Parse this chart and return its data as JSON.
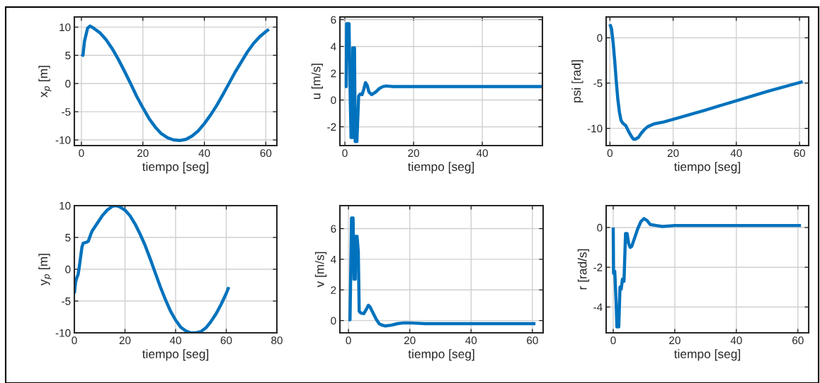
{
  "chart_data": [
    {
      "type": "line",
      "xlabel": "tiempo [seg]",
      "ylabel": "x$_{p}$ [m]",
      "xlim": [
        -2.3,
        63.6
      ],
      "ylim": [
        -11,
        11.8
      ],
      "xticks": [
        0,
        20,
        40,
        60
      ],
      "yticks": [
        -10,
        -5,
        0,
        5,
        10
      ],
      "grid": true,
      "x": [
        0,
        0.5,
        1,
        2,
        2.8,
        4,
        6,
        8,
        10,
        12,
        14,
        16,
        18,
        20,
        22,
        24,
        26,
        28,
        30,
        32,
        34,
        36,
        38,
        40,
        42,
        44,
        46,
        48,
        50,
        52,
        54,
        56,
        58,
        60,
        61
      ],
      "series": [
        {
          "color": "#0072bd",
          "values": [
            5.2,
            5.0,
            7.5,
            9.8,
            10.2,
            9.8,
            9.0,
            7.8,
            6.2,
            4.3,
            2.2,
            0,
            -2.3,
            -4.3,
            -6.2,
            -7.7,
            -8.9,
            -9.6,
            -10,
            -10.1,
            -9.9,
            -9.3,
            -8.4,
            -7.1,
            -5.6,
            -3.9,
            -2.0,
            0,
            2.0,
            3.8,
            5.6,
            7.1,
            8.3,
            9.2,
            9.6
          ]
        }
      ]
    },
    {
      "type": "line",
      "xlabel": "tiempo [seg]",
      "ylabel": "u [m/s]",
      "xlim": [
        -1.45,
        57.5
      ],
      "ylim": [
        -3.4,
        6.2
      ],
      "xticks": [
        0,
        20,
        40
      ],
      "yticks": [
        -2,
        0,
        2,
        4,
        6
      ],
      "grid": true,
      "x": [
        0,
        0.4,
        0.5,
        1.2,
        1.5,
        1.8,
        2.2,
        2.3,
        2.8,
        3,
        3.5,
        4,
        4.5,
        5,
        5.5,
        6,
        6.5,
        7,
        7.8,
        9,
        10,
        11,
        12,
        14,
        20,
        57.5
      ],
      "series": [
        {
          "color": "#0072bd",
          "values": [
            1,
            1,
            5.7,
            5.7,
            1,
            -2.8,
            -2.8,
            3.9,
            3.9,
            -3.1,
            -3.1,
            0.3,
            0.45,
            0.4,
            0.8,
            1.3,
            1.1,
            0.6,
            0.4,
            0.6,
            0.85,
            1.0,
            1.05,
            1.0,
            1.0,
            1.0
          ]
        }
      ]
    },
    {
      "type": "line",
      "xlabel": "tiempo [seg]",
      "ylabel": "psi [rad]",
      "xlim": [
        -1.2,
        62.9
      ],
      "ylim": [
        -11.9,
        2.3
      ],
      "xticks": [
        0,
        20,
        40,
        60
      ],
      "yticks": [
        -10,
        -5,
        0
      ],
      "grid": true,
      "x": [
        0,
        0.5,
        1,
        1.5,
        2,
        2.5,
        3,
        3.5,
        4,
        5,
        6,
        7,
        7.5,
        8,
        9,
        10,
        11,
        12,
        14,
        17,
        20,
        30,
        40,
        50,
        61
      ],
      "series": [
        {
          "color": "#0072bd",
          "values": [
            1.5,
            1.0,
            -0.5,
            -2.5,
            -4.8,
            -6.8,
            -8.2,
            -9.1,
            -9.4,
            -9.7,
            -10.4,
            -11.0,
            -11.2,
            -11.2,
            -11.0,
            -10.5,
            -10.1,
            -9.8,
            -9.5,
            -9.3,
            -9.0,
            -8.0,
            -6.95,
            -5.9,
            -4.85
          ]
        }
      ]
    },
    {
      "type": "line",
      "xlabel": "tiempo [seg]",
      "ylabel": "y$_{p}$ [m]",
      "xlim": [
        0,
        80
      ],
      "ylim": [
        -10,
        10
      ],
      "xticks": [
        0,
        20,
        40,
        60,
        80
      ],
      "yticks": [
        -10,
        -5,
        0,
        5,
        10
      ],
      "grid": true,
      "x": [
        0,
        0.5,
        1,
        1.5,
        2,
        3,
        3.5,
        4.5,
        5.5,
        6.5,
        7,
        9,
        11,
        13,
        15,
        16.5,
        18,
        20,
        22,
        24,
        26,
        28,
        30,
        32,
        34,
        36,
        38,
        40,
        42,
        44,
        46,
        48,
        50,
        52,
        54,
        56,
        58,
        60,
        61
      ],
      "series": [
        {
          "color": "#0072bd",
          "values": [
            -3.8,
            -2,
            -1.3,
            -0.8,
            0.5,
            3.5,
            4.1,
            4.2,
            4.4,
            5.5,
            6,
            7.2,
            8.4,
            9.3,
            9.9,
            10,
            9.8,
            9.3,
            8.4,
            7.1,
            5.5,
            3.7,
            1.6,
            -0.6,
            -2.8,
            -4.8,
            -6.6,
            -8.0,
            -9.1,
            -9.7,
            -10,
            -10,
            -9.8,
            -9.2,
            -8.2,
            -7,
            -5.5,
            -3.8,
            -2.8
          ]
        }
      ]
    },
    {
      "type": "line",
      "xlabel": "tiempo [seg]",
      "ylabel": "v [m/s]",
      "xlim": [
        -2.8,
        63.5
      ],
      "ylim": [
        -0.8,
        7.5
      ],
      "xticks": [
        0,
        20,
        40,
        60
      ],
      "yticks": [
        0,
        2,
        4,
        6
      ],
      "grid": true,
      "x": [
        0,
        0.5,
        1,
        1.5,
        1.8,
        2.2,
        2.4,
        2.8,
        3.2,
        3.5,
        4,
        5,
        6,
        6.5,
        7,
        8,
        9,
        10,
        11,
        12,
        14,
        16,
        18,
        20,
        25,
        61
      ],
      "series": [
        {
          "color": "#0072bd",
          "values": [
            0.05,
            0.05,
            6.7,
            6.7,
            2.7,
            2.7,
            5.5,
            5.5,
            4.5,
            0.6,
            0.5,
            0.45,
            0.8,
            1.0,
            0.9,
            0.5,
            0.1,
            -0.2,
            -0.3,
            -0.35,
            -0.3,
            -0.2,
            -0.15,
            -0.15,
            -0.2,
            -0.2
          ]
        }
      ]
    },
    {
      "type": "line",
      "xlabel": "tiempo [seg]",
      "ylabel": "r [rad/s]",
      "xlim": [
        -2.3,
        63.5
      ],
      "ylim": [
        -5.3,
        1.1
      ],
      "xticks": [
        0,
        20,
        40,
        60
      ],
      "yticks": [
        -4,
        -2,
        0
      ],
      "grid": true,
      "x": [
        0,
        0.1,
        0.5,
        1,
        1.2,
        1.8,
        2.2,
        2.6,
        3,
        3.5,
        4,
        4.5,
        5,
        5.5,
        6,
        7,
        8,
        9,
        10,
        11,
        12,
        14,
        16,
        20,
        61
      ],
      "series": [
        {
          "color": "#0072bd",
          "values": [
            0,
            -2.3,
            -2.2,
            -4.0,
            -5.0,
            -5.0,
            -3.0,
            -3.1,
            -2.6,
            -2.7,
            -0.3,
            -0.3,
            -0.8,
            -1.0,
            -0.95,
            -0.5,
            -0.05,
            0.3,
            0.45,
            0.35,
            0.15,
            0.1,
            0.05,
            0.1,
            0.1
          ]
        }
      ]
    }
  ]
}
